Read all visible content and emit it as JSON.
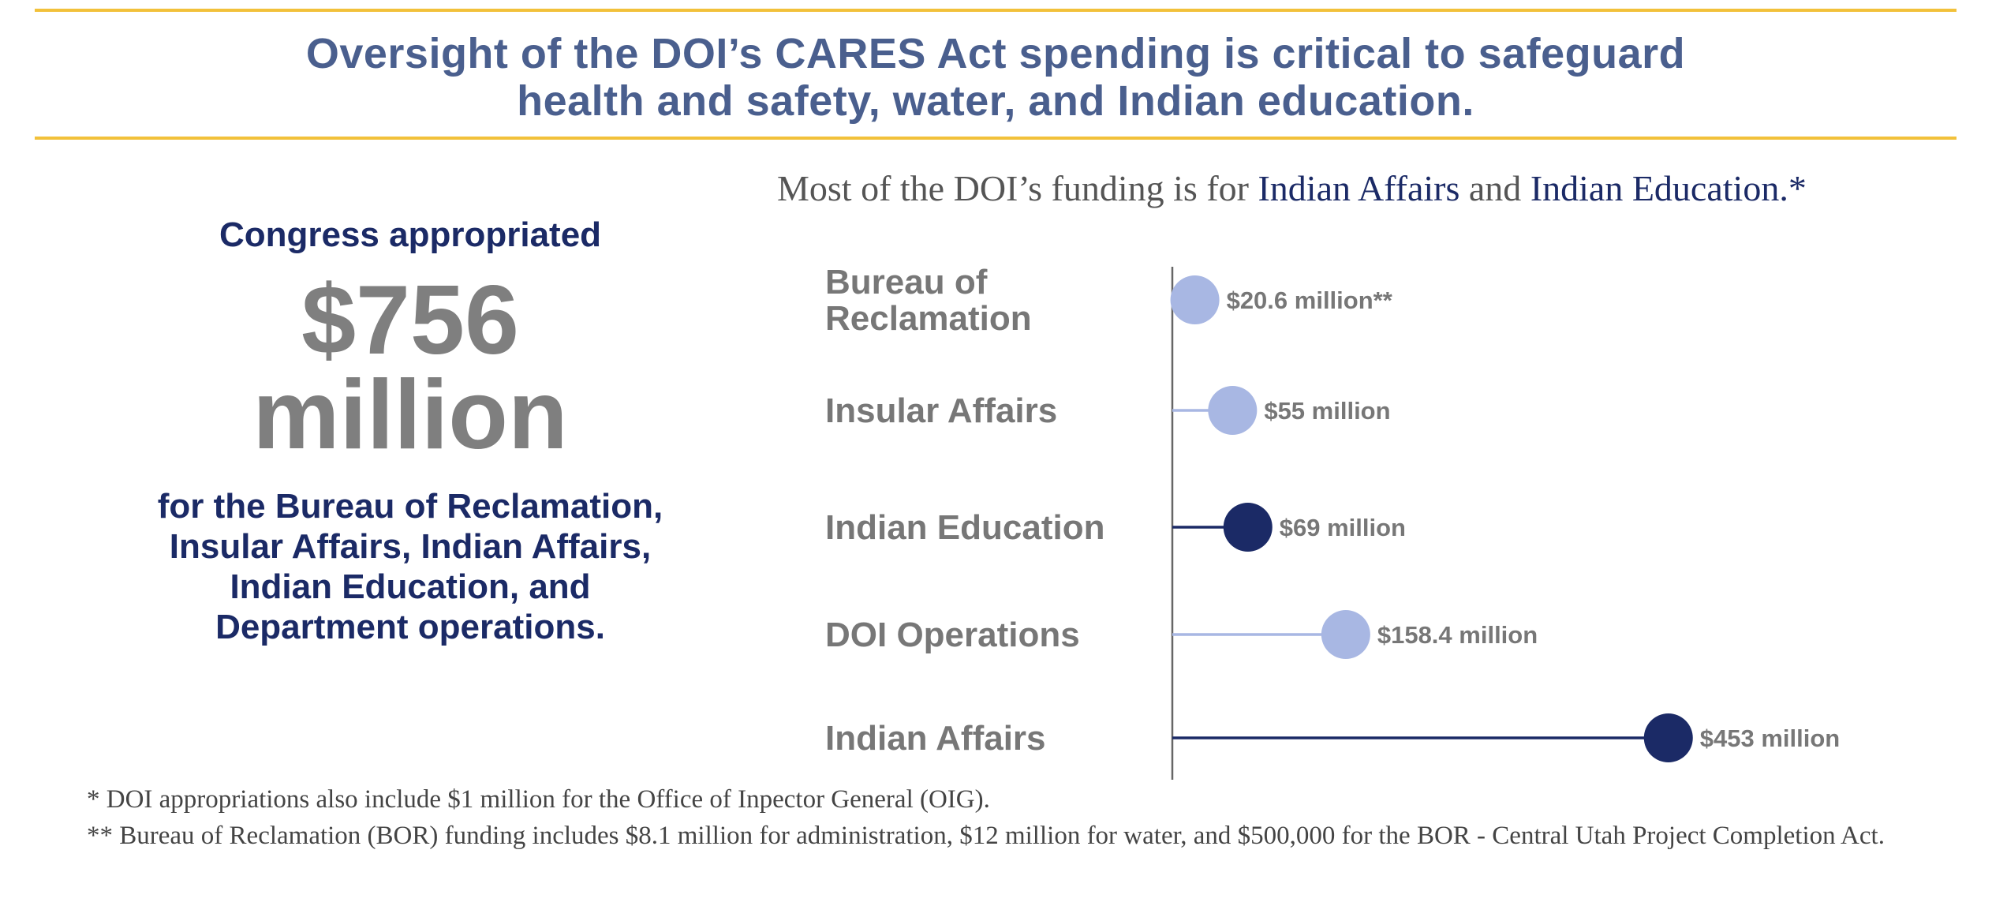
{
  "header": {
    "headline_line1": "Oversight of the DOI’s CARES Act spending is critical to safeguard",
    "headline_line2": "health and safety, water, and Indian education."
  },
  "summary": {
    "intro": "Congress appropriated",
    "amount_line1": "$756",
    "amount_line2": "million",
    "desc_line1": "for the Bureau of Reclamation,",
    "desc_line2": "Insular Affairs, Indian Affairs,",
    "desc_line3": "Indian Education, and",
    "desc_line4": "Department operations."
  },
  "chart_subtitle": {
    "part1": "Most of the DOI’s funding is for ",
    "part2": "Indian Affairs",
    "part3": " and ",
    "part4": "Indian Education.*"
  },
  "colors": {
    "light": "#a8b7e3",
    "dark": "#1b2a66",
    "label": "#777777",
    "axis": "#666666"
  },
  "chart_data": {
    "type": "lollipop",
    "title": "Most of the DOI’s funding is for Indian Affairs and Indian Education.*",
    "units": "million USD",
    "categories": [
      [
        "Bureau of",
        "Reclamation"
      ],
      [
        "Insular Affairs"
      ],
      [
        "Indian Education"
      ],
      [
        "DOI Operations"
      ],
      [
        "Indian Affairs"
      ]
    ],
    "values": [
      20.6,
      55,
      69,
      158.4,
      453
    ],
    "value_labels": [
      "$20.6 million**",
      "$55 million",
      "$69 million",
      "$158.4 million",
      "$453 million"
    ],
    "highlight": [
      false,
      false,
      true,
      false,
      true
    ],
    "xlim": [
      0,
      500
    ]
  },
  "footnotes": {
    "note1": "* DOI appropriations also include $1 million for the Office of Inpector General (OIG).",
    "note2": "** Bureau of Reclamation (BOR) funding includes $8.1 million for administration, $12 million for water, and $500,000 for the BOR - Central Utah Project Completion Act."
  }
}
